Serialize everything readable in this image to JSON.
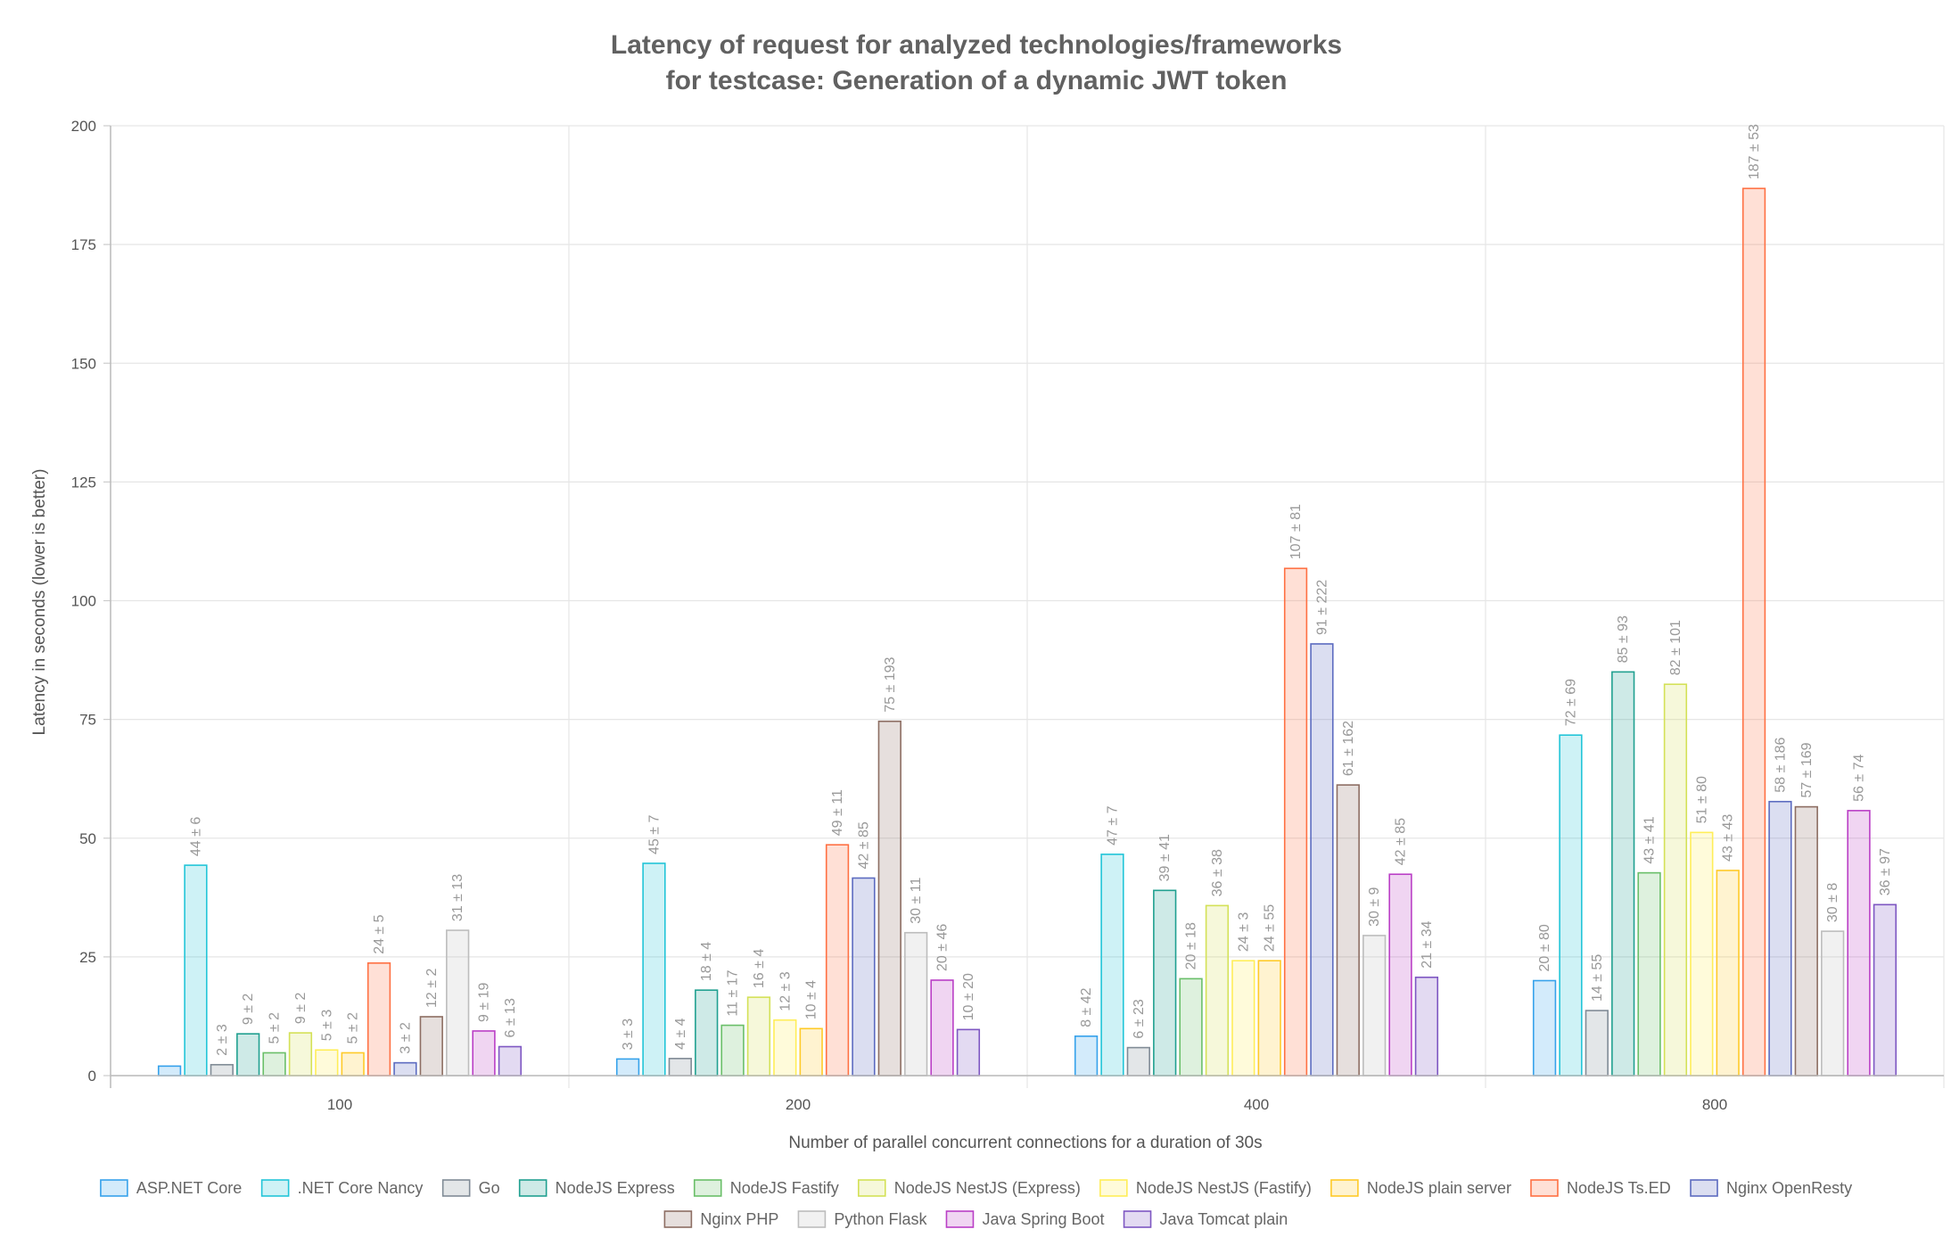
{
  "chart_data": {
    "type": "bar",
    "title": [
      "Latency of request for analyzed technologies/frameworks",
      "for testcase: Generation of a dynamic JWT token"
    ],
    "xlabel": "Number of parallel concurrent connections for a duration of 30s",
    "ylabel": "Latency in seconds (lower is better)",
    "ylim": [
      0,
      200
    ],
    "yticks": [
      0,
      25,
      50,
      75,
      100,
      125,
      150,
      175,
      200
    ],
    "grid": true,
    "legend_position": "bottom",
    "categories": [
      "100",
      "200",
      "400",
      "800"
    ],
    "series": [
      {
        "name": "ASP.NET Core",
        "color": "#36a2eb",
        "values": [
          2,
          3.5,
          8.3,
          20
        ],
        "labels": [
          "",
          "3 ± 3",
          "8 ± 42",
          "20 ± 80"
        ]
      },
      {
        "name": ".NET Core Nancy",
        "color": "#22c5d8",
        "values": [
          44.3,
          44.7,
          46.6,
          71.7
        ],
        "labels": [
          "44 ± 6",
          "45 ± 7",
          "47 ± 7",
          "72 ± 69"
        ]
      },
      {
        "name": "Go",
        "color": "#808b96",
        "values": [
          2.3,
          3.6,
          5.9,
          13.7
        ],
        "labels": [
          "2 ± 3",
          "4 ± 4",
          "6 ± 23",
          "14 ± 55"
        ]
      },
      {
        "name": "NodeJS Express",
        "color": "#20a090",
        "values": [
          8.8,
          18,
          39,
          85
        ],
        "labels": [
          "9 ± 2",
          "18 ± 4",
          "39 ± 41",
          "85 ± 93"
        ]
      },
      {
        "name": "NodeJS Fastify",
        "color": "#6abf69",
        "values": [
          4.8,
          10.6,
          20.4,
          42.7
        ],
        "labels": [
          "5 ± 2",
          "11 ± 17",
          "20 ± 18",
          "43 ± 41"
        ]
      },
      {
        "name": "NodeJS NestJS (Express)",
        "color": "#d4e157",
        "values": [
          9,
          16.5,
          35.8,
          82.4
        ],
        "labels": [
          "9 ± 2",
          "16 ± 4",
          "36 ± 38",
          "82 ± 101"
        ]
      },
      {
        "name": "NodeJS NestJS (Fastify)",
        "color": "#ffee58",
        "values": [
          5.4,
          11.7,
          24.2,
          51.2
        ],
        "labels": [
          "5 ± 3",
          "12 ± 3",
          "24 ± 3",
          "51 ± 80"
        ]
      },
      {
        "name": "NodeJS plain server",
        "color": "#ffca28",
        "values": [
          4.8,
          9.9,
          24.2,
          43.2
        ],
        "labels": [
          "5 ± 2",
          "10 ± 4",
          "24 ± 55",
          "43 ± 43"
        ]
      },
      {
        "name": "NodeJS Ts.ED",
        "color": "#ff7043",
        "values": [
          23.7,
          48.6,
          106.8,
          186.8
        ],
        "labels": [
          "24 ± 5",
          "49 ± 11",
          "107 ± 81",
          "187 ± 53"
        ]
      },
      {
        "name": "Nginx OpenResty",
        "color": "#5c6bc0",
        "values": [
          2.7,
          41.6,
          90.9,
          57.7
        ],
        "labels": [
          "3 ± 2",
          "42 ± 85",
          "91 ± 222",
          "58 ± 186"
        ]
      },
      {
        "name": "Nginx PHP",
        "color": "#8d6e63",
        "values": [
          12.4,
          74.6,
          61.2,
          56.6
        ],
        "labels": [
          "12 ± 2",
          "75 ± 193",
          "61 ± 162",
          "57 ± 169"
        ]
      },
      {
        "name": "Python Flask",
        "color": "#bdbdbd",
        "values": [
          30.6,
          30.1,
          29.5,
          30.4
        ],
        "labels": [
          "31 ± 13",
          "30 ± 11",
          "30 ± 9",
          "30 ± 8"
        ]
      },
      {
        "name": "Java Spring Boot",
        "color": "#ba3fc6",
        "values": [
          9.4,
          20.1,
          42.4,
          55.8
        ],
        "labels": [
          "9 ± 19",
          "20 ± 46",
          "42 ± 85",
          "56 ± 74"
        ]
      },
      {
        "name": "Java Tomcat plain",
        "color": "#7e57c2",
        "values": [
          6.1,
          9.7,
          20.7,
          36
        ],
        "labels": [
          "6 ± 13",
          "10 ± 20",
          "21 ± 34",
          "36 ± 97"
        ]
      }
    ]
  }
}
